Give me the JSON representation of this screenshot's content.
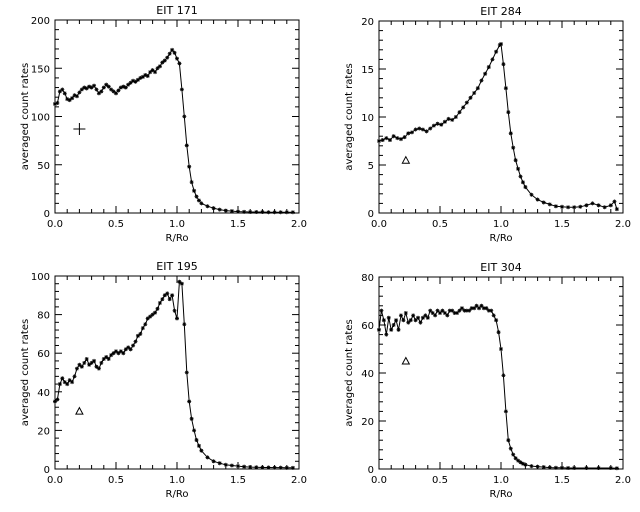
{
  "chart_data": [
    {
      "type": "line",
      "title": "EIT 171",
      "xlabel": "R/Ro",
      "ylabel": "averaged count rates",
      "xlim": [
        0,
        2.0
      ],
      "ylim": [
        0,
        200
      ],
      "xticks": [
        "0.0",
        "0.5",
        "1.0",
        "1.5",
        "2.0"
      ],
      "yticks": [
        "0",
        "50",
        "100",
        "150",
        "200"
      ],
      "marker": "plus",
      "marker_point": [
        0.2,
        87
      ],
      "series": [
        {
          "x": [
            0.0,
            0.02,
            0.04,
            0.06,
            0.08,
            0.1,
            0.12,
            0.14,
            0.16,
            0.18,
            0.2,
            0.22,
            0.24,
            0.26,
            0.28,
            0.3,
            0.32,
            0.34,
            0.36,
            0.38,
            0.4,
            0.42,
            0.44,
            0.46,
            0.48,
            0.5,
            0.52,
            0.54,
            0.56,
            0.58,
            0.6,
            0.62,
            0.64,
            0.66,
            0.68,
            0.7,
            0.72,
            0.74,
            0.76,
            0.78,
            0.8,
            0.82,
            0.84,
            0.86,
            0.88,
            0.9,
            0.92,
            0.94,
            0.96,
            0.98,
            1.0,
            1.02,
            1.04,
            1.06,
            1.08,
            1.1,
            1.12,
            1.14,
            1.16,
            1.18,
            1.2,
            1.25,
            1.3,
            1.35,
            1.4,
            1.45,
            1.5,
            1.55,
            1.6,
            1.65,
            1.7,
            1.75,
            1.8,
            1.85,
            1.9,
            1.95
          ],
          "y": [
            113,
            114,
            126,
            128,
            124,
            118,
            117,
            119,
            122,
            121,
            125,
            128,
            130,
            129,
            131,
            130,
            132,
            128,
            124,
            126,
            130,
            133,
            131,
            128,
            126,
            124,
            127,
            130,
            131,
            130,
            133,
            135,
            137,
            136,
            138,
            140,
            141,
            143,
            142,
            146,
            148,
            146,
            150,
            152,
            156,
            158,
            161,
            165,
            169,
            166,
            160,
            155,
            128,
            100,
            70,
            48,
            32,
            23,
            17,
            13,
            10,
            7,
            5,
            3.5,
            2.5,
            2,
            1.5,
            1.2,
            1,
            1,
            1,
            0.8,
            0.8,
            0.8,
            0.8,
            0.8
          ]
        }
      ]
    },
    {
      "type": "line",
      "title": "EIT 284",
      "xlabel": "R/Ro",
      "ylabel": "averaged count rates",
      "xlim": [
        0,
        2.0
      ],
      "ylim": [
        0,
        20
      ],
      "xticks": [
        "0.0",
        "0.5",
        "1.0",
        "1.5",
        "2.0"
      ],
      "yticks": [
        "0",
        "5",
        "10",
        "15",
        "20"
      ],
      "marker": "triangle",
      "marker_point": [
        0.22,
        5.5
      ],
      "series": [
        {
          "x": [
            0.0,
            0.03,
            0.06,
            0.09,
            0.12,
            0.15,
            0.18,
            0.21,
            0.24,
            0.27,
            0.3,
            0.33,
            0.36,
            0.39,
            0.42,
            0.45,
            0.48,
            0.51,
            0.54,
            0.57,
            0.6,
            0.63,
            0.66,
            0.69,
            0.72,
            0.75,
            0.78,
            0.81,
            0.84,
            0.87,
            0.9,
            0.93,
            0.96,
            0.99,
            1.0,
            1.02,
            1.04,
            1.06,
            1.08,
            1.1,
            1.12,
            1.14,
            1.16,
            1.18,
            1.2,
            1.25,
            1.3,
            1.35,
            1.4,
            1.45,
            1.5,
            1.55,
            1.6,
            1.65,
            1.7,
            1.75,
            1.8,
            1.85,
            1.9,
            1.93,
            1.95
          ],
          "y": [
            7.5,
            7.6,
            7.8,
            7.6,
            8.0,
            7.8,
            7.7,
            7.9,
            8.3,
            8.4,
            8.7,
            8.8,
            8.7,
            8.5,
            8.8,
            9.1,
            9.3,
            9.2,
            9.5,
            9.8,
            9.7,
            10.0,
            10.5,
            11.0,
            11.5,
            12.0,
            12.5,
            13.0,
            13.8,
            14.5,
            15.2,
            16.0,
            16.8,
            17.5,
            17.6,
            15.5,
            13.0,
            10.5,
            8.3,
            6.8,
            5.5,
            4.6,
            3.8,
            3.2,
            2.7,
            1.9,
            1.4,
            1.1,
            0.9,
            0.7,
            0.65,
            0.6,
            0.6,
            0.65,
            0.8,
            1.0,
            0.8,
            0.6,
            0.8,
            1.2,
            0.4
          ]
        }
      ]
    },
    {
      "type": "line",
      "title": "EIT 195",
      "xlabel": "R/Ro",
      "ylabel": "averaged count rates",
      "xlim": [
        0,
        2.0
      ],
      "ylim": [
        0,
        100
      ],
      "xticks": [
        "0.0",
        "0.5",
        "1.0",
        "1.5",
        "2.0"
      ],
      "yticks": [
        "0",
        "20",
        "40",
        "60",
        "80",
        "100"
      ],
      "marker": "triangle",
      "marker_point": [
        0.2,
        30
      ],
      "series": [
        {
          "x": [
            0.0,
            0.02,
            0.04,
            0.06,
            0.08,
            0.1,
            0.12,
            0.14,
            0.16,
            0.18,
            0.2,
            0.22,
            0.24,
            0.26,
            0.28,
            0.3,
            0.32,
            0.34,
            0.36,
            0.38,
            0.4,
            0.42,
            0.44,
            0.46,
            0.48,
            0.5,
            0.52,
            0.54,
            0.56,
            0.58,
            0.6,
            0.62,
            0.64,
            0.66,
            0.68,
            0.7,
            0.72,
            0.74,
            0.76,
            0.78,
            0.8,
            0.82,
            0.84,
            0.86,
            0.88,
            0.9,
            0.92,
            0.94,
            0.96,
            0.98,
            1.0,
            1.02,
            1.04,
            1.06,
            1.08,
            1.1,
            1.12,
            1.14,
            1.16,
            1.18,
            1.2,
            1.25,
            1.3,
            1.35,
            1.4,
            1.45,
            1.5,
            1.55,
            1.6,
            1.65,
            1.7,
            1.75,
            1.8,
            1.85,
            1.9,
            1.95
          ],
          "y": [
            35,
            36,
            44,
            47,
            45,
            44,
            46,
            45,
            48,
            52,
            54,
            53,
            55,
            57,
            54,
            55,
            56,
            53,
            52,
            55,
            57,
            58,
            57,
            59,
            60,
            61,
            60,
            61,
            60,
            62,
            63,
            62,
            64,
            66,
            69,
            70,
            73,
            75,
            78,
            79,
            80,
            81,
            83,
            86,
            88,
            90,
            91,
            88,
            90,
            82,
            78,
            97,
            96,
            75,
            50,
            35,
            26,
            20,
            15,
            12,
            9.5,
            6,
            4,
            3,
            2.2,
            1.8,
            1.5,
            1.2,
            1.0,
            0.9,
            0.8,
            0.8,
            0.7,
            0.7,
            0.6,
            0.6
          ]
        }
      ]
    },
    {
      "type": "line",
      "title": "EIT 304",
      "xlabel": "R/Ro",
      "ylabel": "averaged count rates",
      "xlim": [
        0,
        2.0
      ],
      "ylim": [
        0,
        80
      ],
      "xticks": [
        "0.0",
        "0.5",
        "1.0",
        "1.5",
        "2.0"
      ],
      "yticks": [
        "0",
        "20",
        "40",
        "60",
        "80"
      ],
      "marker": "triangle",
      "marker_point": [
        0.22,
        45
      ],
      "series": [
        {
          "x": [
            0.0,
            0.02,
            0.04,
            0.06,
            0.08,
            0.1,
            0.12,
            0.14,
            0.16,
            0.18,
            0.2,
            0.22,
            0.24,
            0.26,
            0.28,
            0.3,
            0.32,
            0.34,
            0.36,
            0.38,
            0.4,
            0.42,
            0.44,
            0.46,
            0.48,
            0.5,
            0.52,
            0.54,
            0.56,
            0.58,
            0.6,
            0.62,
            0.64,
            0.66,
            0.68,
            0.7,
            0.72,
            0.74,
            0.76,
            0.78,
            0.8,
            0.82,
            0.84,
            0.86,
            0.88,
            0.9,
            0.92,
            0.94,
            0.96,
            0.98,
            1.0,
            1.02,
            1.04,
            1.06,
            1.08,
            1.1,
            1.12,
            1.14,
            1.16,
            1.18,
            1.2,
            1.25,
            1.3,
            1.35,
            1.4,
            1.45,
            1.5,
            1.55,
            1.6,
            1.7,
            1.8,
            1.9,
            1.95
          ],
          "y": [
            58,
            66,
            62,
            56,
            63,
            58,
            60,
            62,
            58,
            64,
            62,
            65,
            61,
            62,
            64,
            62,
            63,
            61,
            63,
            64,
            63,
            66,
            65,
            64,
            66,
            65,
            66,
            65,
            64,
            66,
            66,
            65,
            65,
            66,
            67,
            66,
            66,
            66,
            67,
            67,
            68,
            67,
            68,
            67,
            67,
            66,
            66,
            64,
            62,
            57,
            50,
            39,
            24,
            12,
            8.5,
            6,
            4.5,
            3.5,
            2.8,
            2.2,
            1.8,
            1.2,
            1.0,
            0.8,
            0.6,
            0.5,
            0.5,
            0.4,
            0.4,
            0.4,
            0.4,
            0.4,
            0.3
          ]
        }
      ]
    }
  ]
}
